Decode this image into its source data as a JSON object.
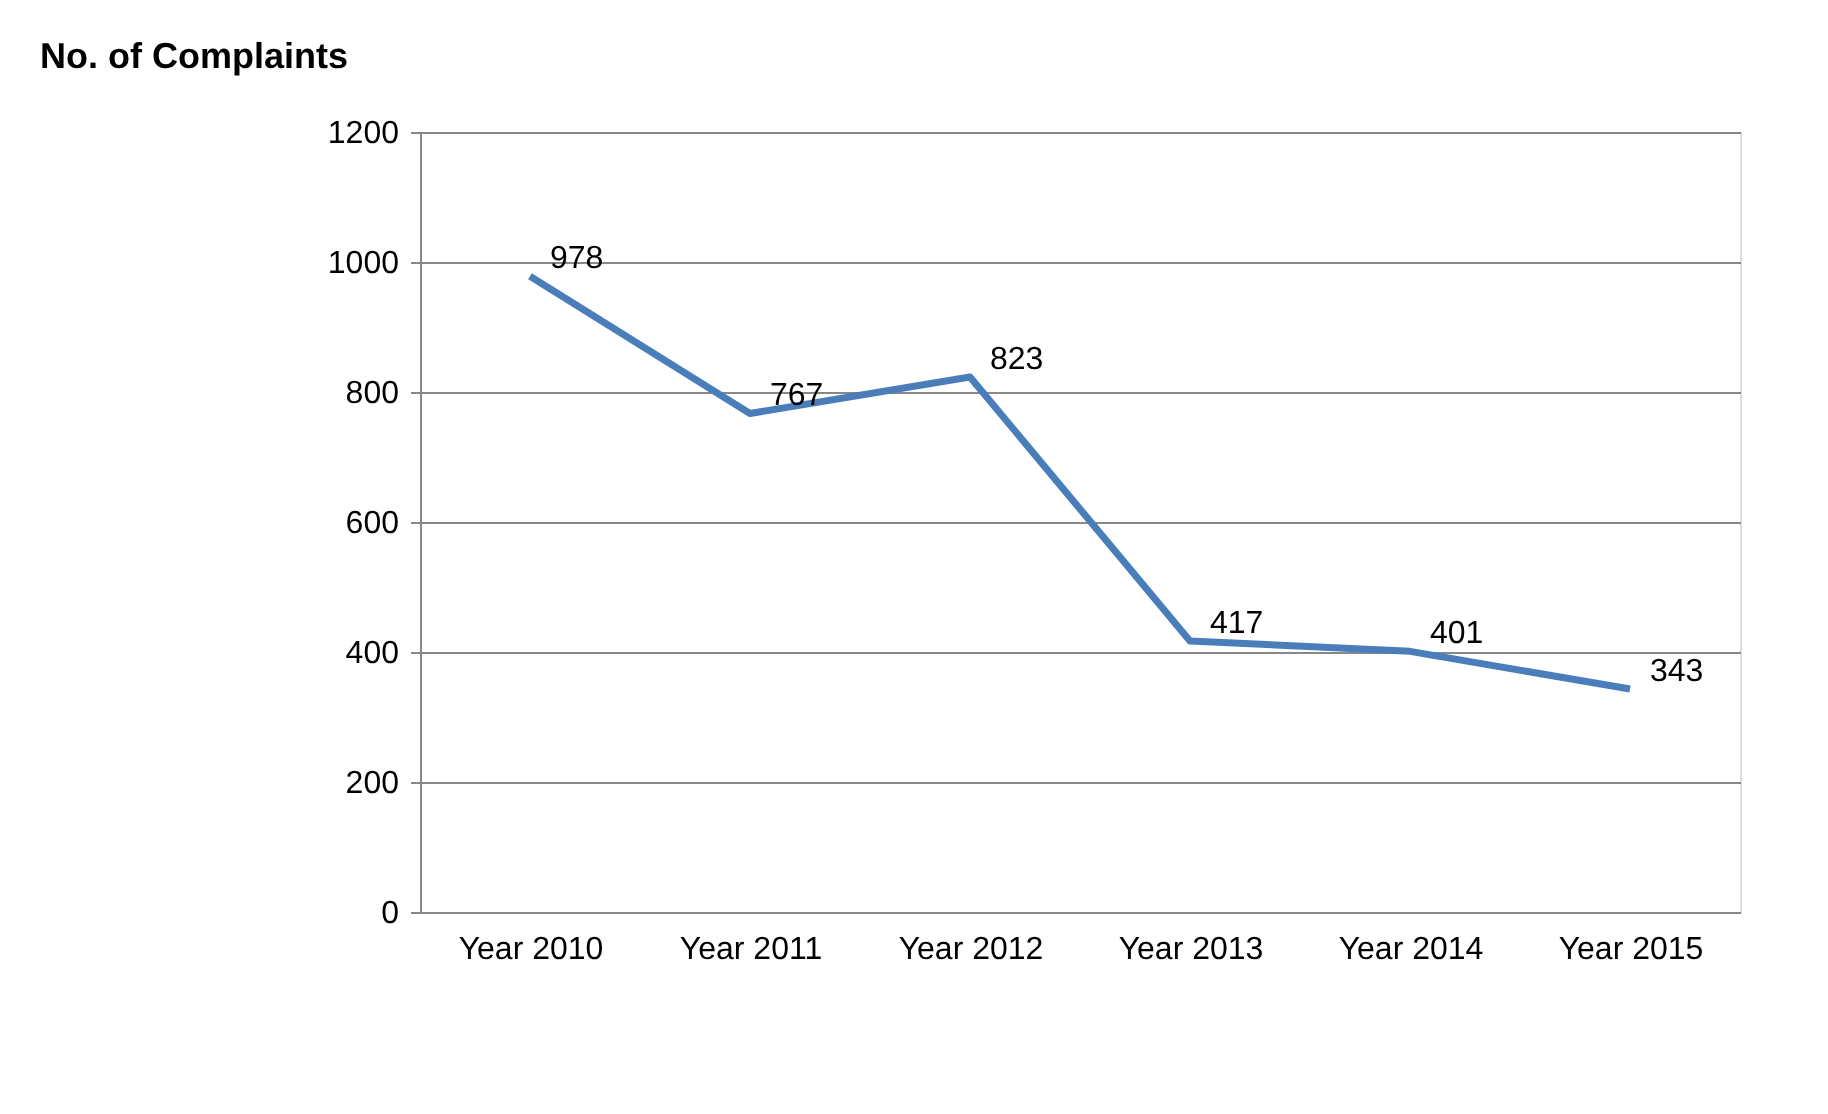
{
  "chart_data": {
    "type": "line",
    "title": "No. of Complaints",
    "categories": [
      "Year 2010",
      "Year 2011",
      "Year 2012",
      "Year 2013",
      "Year 2014",
      "Year 2015"
    ],
    "series": [
      {
        "color": "#4a7ebb",
        "values": [
          978,
          767,
          823,
          417,
          401,
          343
        ]
      }
    ],
    "ylim": [
      0,
      1200
    ],
    "yticks": [
      0,
      200,
      400,
      600,
      800,
      1000,
      1200
    ],
    "grid": "y",
    "data_labels": true,
    "marker": "none",
    "line_style": "solid"
  }
}
